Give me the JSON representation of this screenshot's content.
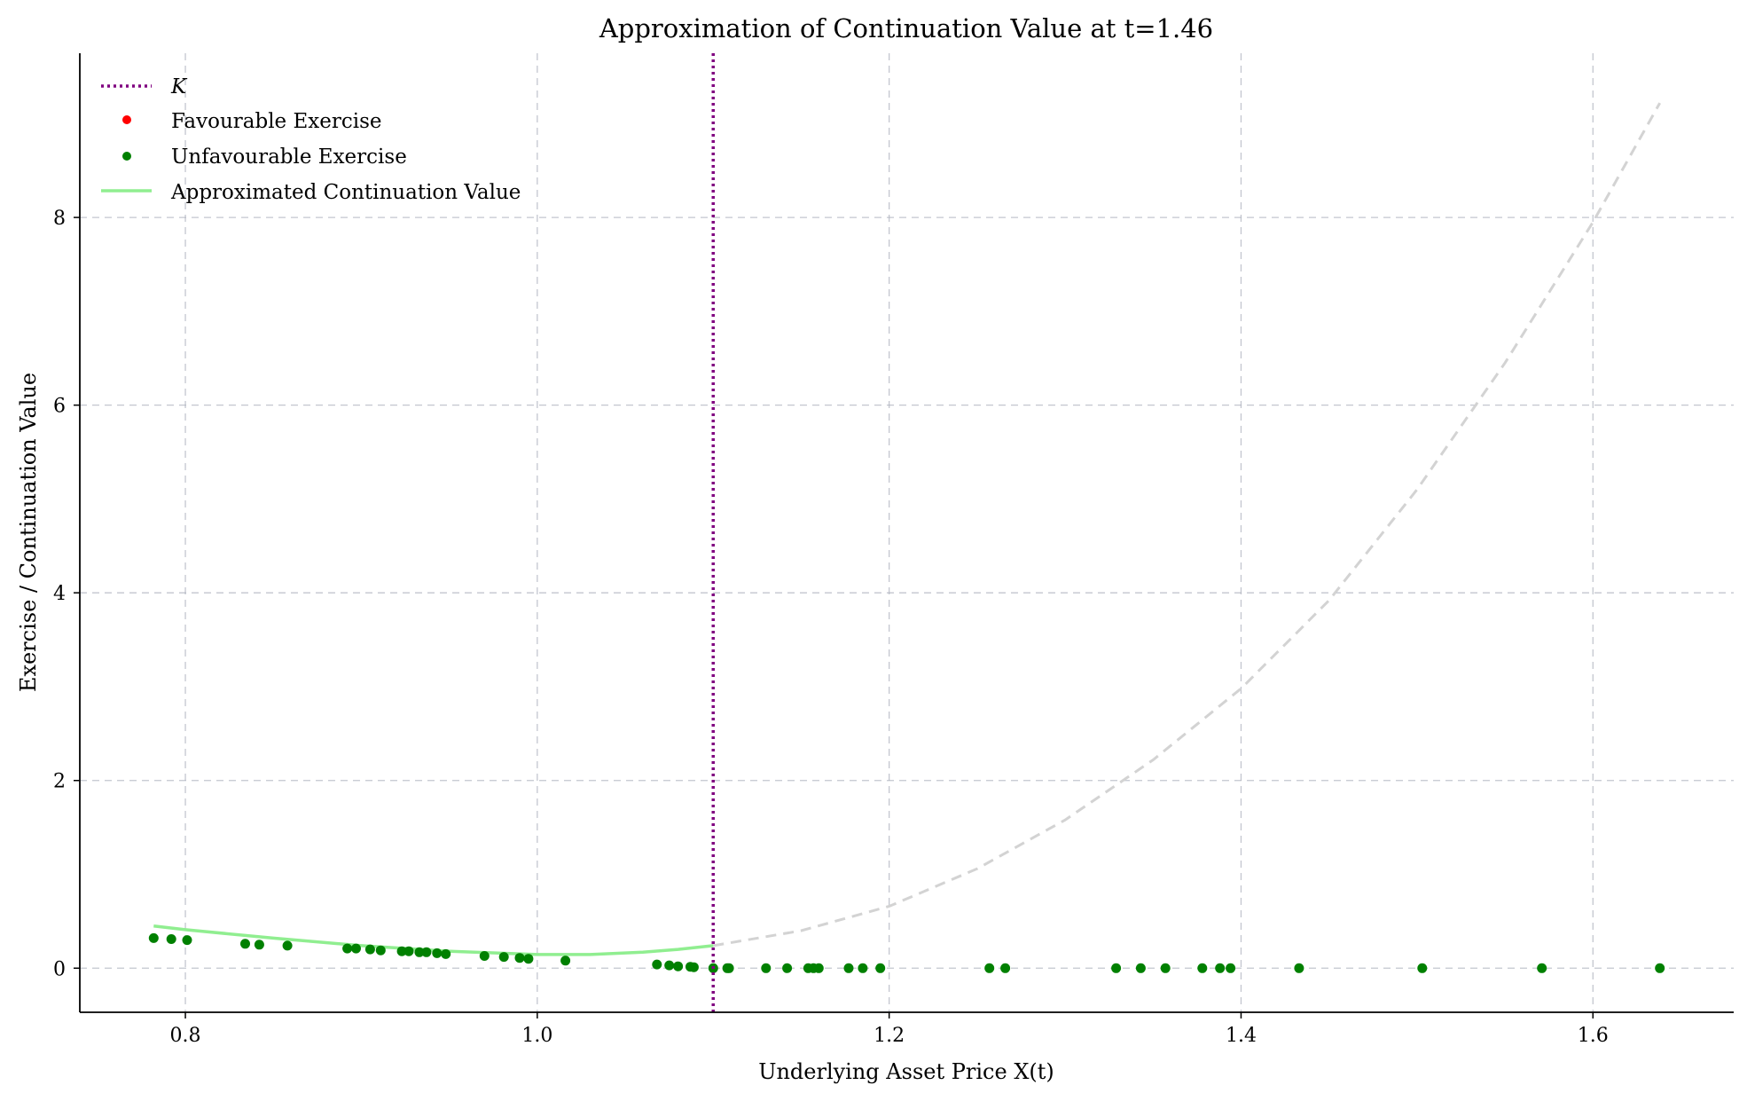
{
  "chart_data": {
    "type": "scatter",
    "title": "Approximation of Continuation Value at t=1.46",
    "xlabel": "Underlying Asset Price X(t)",
    "ylabel": "Exercise / Continuation Value",
    "xlim": [
      0.74,
      1.68
    ],
    "ylim": [
      -0.47,
      9.75
    ],
    "xticks": [
      0.8,
      1.0,
      1.2,
      1.4,
      1.6
    ],
    "xtick_labels": [
      "0.8",
      "1.0",
      "1.2",
      "1.4",
      "1.6"
    ],
    "yticks": [
      0,
      2,
      4,
      6,
      8
    ],
    "ytick_labels": [
      "0",
      "2",
      "4",
      "6",
      "8"
    ],
    "grid": true,
    "legend_position": "top-left",
    "strike": {
      "name": "K",
      "x": 1.1,
      "color": "#800080"
    },
    "favourable_exercise": {
      "name": "Favourable Exercise",
      "color": "#ff0000",
      "x": [],
      "y": []
    },
    "unfavourable_exercise": {
      "name": "Unfavourable Exercise",
      "color": "#008000",
      "x": [
        0.782,
        0.792,
        0.801,
        0.834,
        0.842,
        0.858,
        0.892,
        0.897,
        0.905,
        0.911,
        0.923,
        0.927,
        0.933,
        0.937,
        0.943,
        0.948,
        0.97,
        0.981,
        0.99,
        0.995,
        1.016,
        1.068,
        1.075,
        1.08,
        1.087,
        1.089,
        1.1,
        1.108,
        1.109,
        1.13,
        1.142,
        1.154,
        1.157,
        1.16,
        1.177,
        1.185,
        1.195,
        1.257,
        1.266,
        1.329,
        1.343,
        1.357,
        1.378,
        1.388,
        1.394,
        1.433,
        1.503,
        1.571,
        1.638
      ],
      "y": [
        0.32,
        0.31,
        0.3,
        0.26,
        0.25,
        0.24,
        0.21,
        0.21,
        0.2,
        0.19,
        0.18,
        0.18,
        0.17,
        0.17,
        0.16,
        0.15,
        0.13,
        0.12,
        0.11,
        0.1,
        0.08,
        0.04,
        0.03,
        0.02,
        0.015,
        0.01,
        0,
        0,
        0,
        0,
        0,
        0,
        0,
        0,
        0,
        0,
        0,
        0,
        0,
        0,
        0,
        0,
        0,
        0,
        0,
        0,
        0,
        0,
        0
      ]
    },
    "continuation_value": {
      "name": "Approximated Continuation Value",
      "color": "#90ee90",
      "x": [
        0.782,
        0.8,
        0.85,
        0.9,
        0.95,
        1.0,
        1.03,
        1.06,
        1.08,
        1.1
      ],
      "y": [
        0.45,
        0.41,
        0.32,
        0.24,
        0.18,
        0.145,
        0.145,
        0.17,
        0.2,
        0.24
      ]
    },
    "continuation_extension": {
      "color": "#d3d3d3",
      "x": [
        1.1,
        1.15,
        1.2,
        1.25,
        1.3,
        1.35,
        1.4,
        1.45,
        1.5,
        1.55,
        1.6,
        1.638
      ],
      "y": [
        0.24,
        0.4,
        0.66,
        1.06,
        1.58,
        2.22,
        2.98,
        3.92,
        5.1,
        6.45,
        7.95,
        9.22
      ]
    }
  }
}
